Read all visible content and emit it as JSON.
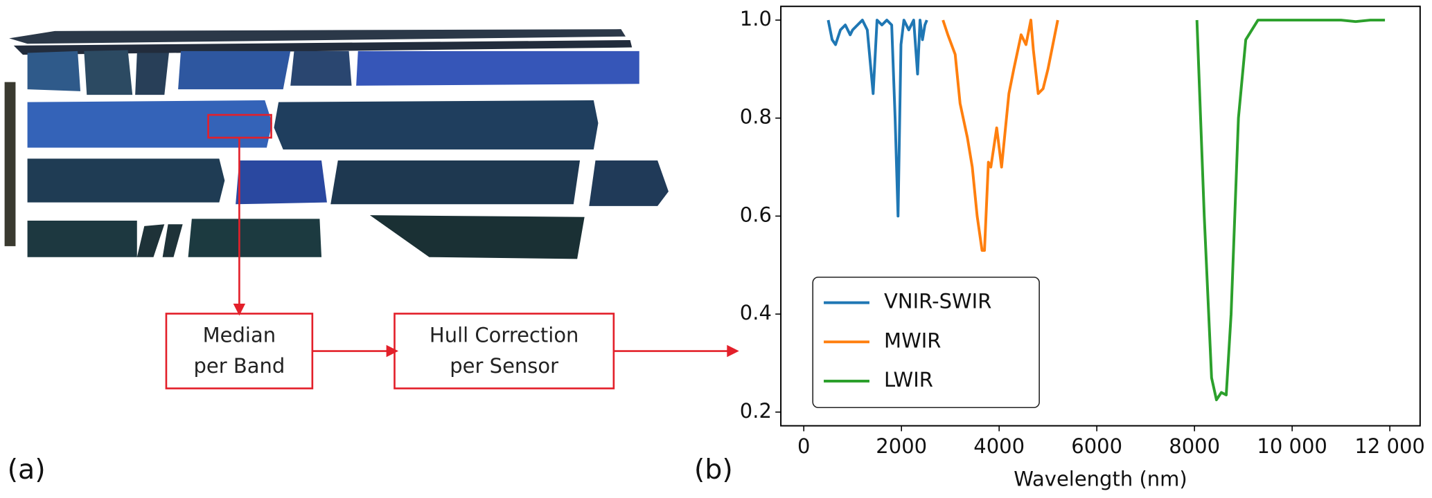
{
  "diagram": {
    "panel_a": "(a)",
    "panel_b": "(b)",
    "box1": [
      "Median",
      "per Band"
    ],
    "box2": [
      "Hull Correction",
      "per Sensor"
    ]
  },
  "chart_data": {
    "type": "line",
    "xlabel": "Wavelength (nm)",
    "xlim": [
      -470,
      12620
    ],
    "ylim": [
      0.172,
      1.028
    ],
    "xticks": [
      0,
      2000,
      4000,
      6000,
      8000,
      {
        "value": 10000,
        "label": "10 000"
      },
      {
        "value": 12000,
        "label": "12 000"
      }
    ],
    "yticks": [
      0.2,
      0.4,
      0.6,
      0.8,
      {
        "value": 1,
        "label": "1.0"
      }
    ],
    "legend": "lower left",
    "series": [
      {
        "name": "VNIR-SWIR",
        "color": "#1f77b4",
        "x": [
          500,
          580,
          650,
          750,
          850,
          950,
          1000,
          1100,
          1200,
          1300,
          1420,
          1500,
          1600,
          1700,
          1800,
          1870,
          1930,
          1990,
          2050,
          2150,
          2250,
          2330,
          2380,
          2430,
          2480,
          2520
        ],
        "values": [
          1.0,
          0.96,
          0.95,
          0.98,
          0.99,
          0.97,
          0.98,
          0.99,
          1.0,
          0.98,
          0.85,
          1.0,
          0.99,
          1.0,
          0.99,
          0.8,
          0.6,
          0.95,
          1.0,
          0.98,
          1.0,
          0.89,
          1.0,
          0.96,
          0.99,
          1.0
        ]
      },
      {
        "name": "MWIR",
        "color": "#ff7f0e",
        "x": [
          2850,
          2950,
          3100,
          3200,
          3350,
          3450,
          3550,
          3650,
          3700,
          3780,
          3830,
          3950,
          4050,
          4200,
          4300,
          4450,
          4550,
          4650,
          4700,
          4800,
          4900,
          5000,
          5100,
          5200
        ],
        "values": [
          1.0,
          0.97,
          0.93,
          0.83,
          0.76,
          0.7,
          0.6,
          0.53,
          0.53,
          0.71,
          0.7,
          0.78,
          0.7,
          0.85,
          0.9,
          0.97,
          0.95,
          1.0,
          0.94,
          0.85,
          0.86,
          0.9,
          0.95,
          1.0
        ]
      },
      {
        "name": "LWIR",
        "color": "#2ca02c",
        "x": [
          8050,
          8200,
          8350,
          8450,
          8550,
          8650,
          8750,
          8900,
          9050,
          9300,
          10000,
          11000,
          11300,
          11600,
          11900
        ],
        "values": [
          1.0,
          0.6,
          0.27,
          0.225,
          0.24,
          0.235,
          0.4,
          0.8,
          0.96,
          1.0,
          1.0,
          1.0,
          0.997,
          1.0,
          1.0
        ]
      }
    ]
  }
}
